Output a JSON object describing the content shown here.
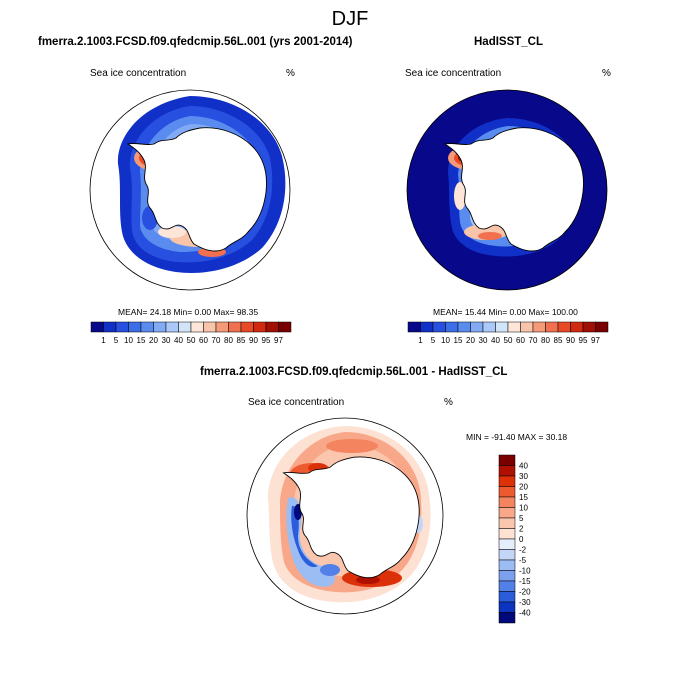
{
  "page_title": "DJF",
  "panels": [
    {
      "title": "fmerra.2.1003.FCSD.f09.qfedcmip.56L.001 (yrs 2001-2014)",
      "variable": "Sea ice concentration",
      "units": "%",
      "stats_text": "MEAN=  24.18  Min=   0.00  Max=  98.35"
    },
    {
      "title": "HadISST_CL",
      "variable": "Sea ice concentration",
      "units": "%",
      "stats_text": "MEAN=  15.44  Min=   0.00  Max= 100.00"
    },
    {
      "title": "fmerra.2.1003.FCSD.f09.qfedcmip.56L.001 - HadISST_CL",
      "variable": "Sea ice concentration",
      "units": "%",
      "stats_text": "MIN = -91.40 MAX =  30.18"
    }
  ],
  "colorbar_horizontal": {
    "labels": [
      "1",
      "5",
      "10",
      "15",
      "20",
      "30",
      "40",
      "50",
      "60",
      "70",
      "80",
      "85",
      "90",
      "95",
      "97"
    ],
    "colors": [
      "#08088a",
      "#1030c8",
      "#2850e0",
      "#3c6ee8",
      "#5a8cf0",
      "#82aaf5",
      "#aac8f8",
      "#d2e4f8",
      "#fde6d8",
      "#f8c4aa",
      "#f49a78",
      "#f07050",
      "#e84a28",
      "#d02a10",
      "#a00e04",
      "#780000"
    ]
  },
  "colorbar_vertical": {
    "labels": [
      "40",
      "30",
      "20",
      "15",
      "10",
      "5",
      "2",
      "0",
      "-2",
      "-5",
      "-10",
      "-15",
      "-20",
      "-30",
      "-40"
    ],
    "colors": [
      "#7a0000",
      "#b01000",
      "#dc3008",
      "#ee5a30",
      "#f48460",
      "#f8a888",
      "#fbc6ae",
      "#fde2d4",
      "#e6eefc",
      "#c4d6f8",
      "#9cbcf4",
      "#7aa0ee",
      "#5280e8",
      "#2a5cdc",
      "#0c34c0",
      "#00087a"
    ]
  },
  "colors": {
    "land": "#ffffff",
    "coastline": "#000000",
    "ocean_no_ice": "#ffffff"
  }
}
